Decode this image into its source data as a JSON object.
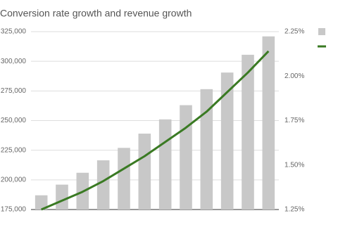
{
  "chart_data": {
    "type": "bar-line",
    "title": "Conversion rate growth and revenue growth",
    "categories": [
      null,
      null,
      null,
      null,
      null,
      null,
      null,
      null,
      null,
      null,
      null,
      null
    ],
    "series": [
      {
        "type": "bar",
        "color": "#c8c8c8",
        "values": [
          187000,
          196000,
          206000,
          216500,
          227000,
          239000,
          251000,
          263000,
          276500,
          290500,
          305500,
          321000
        ]
      },
      {
        "type": "line",
        "axis": "y2",
        "color": "#3a7a23",
        "values": [
          1.25,
          1.3,
          1.35,
          1.41,
          1.48,
          1.55,
          1.63,
          1.71,
          1.8,
          1.91,
          2.02,
          2.14
        ]
      }
    ],
    "ylim": [
      175000,
      325000
    ],
    "yticks": [
      {
        "value": 175000,
        "label": "175,000"
      },
      {
        "value": 200000,
        "label": "200,000"
      },
      {
        "value": 225000,
        "label": "225,000"
      },
      {
        "value": 250000,
        "label": "250,000"
      },
      {
        "value": 275000,
        "label": "275,000"
      },
      {
        "value": 300000,
        "label": "300,000"
      },
      {
        "value": 325000,
        "label": "325,000"
      }
    ],
    "y2lim": [
      1.25,
      2.25
    ],
    "y2ticks": [
      {
        "value": 1.25,
        "label": "1.25%"
      },
      {
        "value": 1.5,
        "label": "1.50%"
      },
      {
        "value": 1.75,
        "label": "1.75%"
      },
      {
        "value": 2.0,
        "label": "2.00%"
      },
      {
        "value": 2.25,
        "label": "2.25%"
      }
    ],
    "grid": true,
    "legend": "right"
  }
}
